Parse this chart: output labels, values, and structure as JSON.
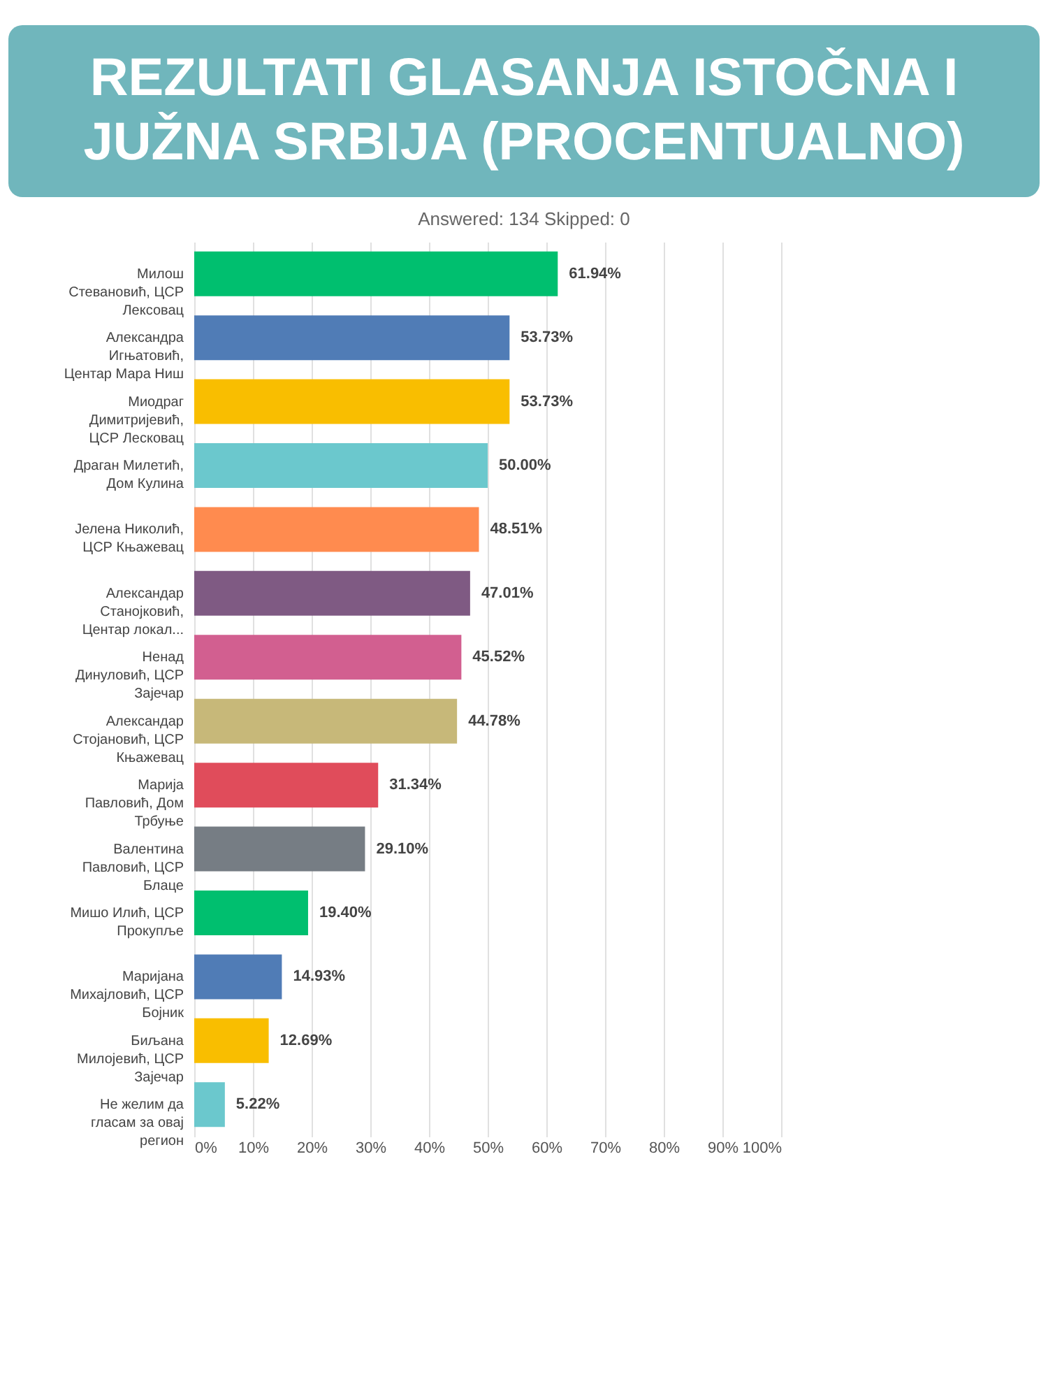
{
  "chart_data": {
    "type": "bar",
    "orientation": "horizontal",
    "title": "REZULTATI GLASANJA ISTOČNA I JUŽNA SRBIJA (PROCENTUALNO)",
    "subtitle": "Answered: 134     Skipped: 0",
    "categories": [
      "Милош Стевановић, ЦСР Лексовац",
      "Александра Игњатовић, Центар Мара Ниш",
      "Миодраг Димитријевић, ЦСР Лесковац",
      "Драган Милетић, Дом Кулина",
      "Јелена Николић, ЦСР Књажевац",
      "Александар Станојковић, Центар локал...",
      "Ненад Динуловић, ЦСР Зајечар",
      "Александар Стојановић, ЦСР Књажевац",
      "Марија Павловић, Дом Трбуње",
      "Валентина Павловић, ЦСР Блаце",
      "Мишо Илић, ЦСР Прокупље",
      "Маријана Михајловић, ЦСР Бојник",
      "Биљана Милојевић, ЦСР Зајечар",
      "Не желим да гласам за овај регион"
    ],
    "values": [
      61.94,
      53.73,
      53.73,
      50.0,
      48.51,
      47.01,
      45.52,
      44.78,
      31.34,
      29.1,
      19.4,
      14.93,
      12.69,
      5.22
    ],
    "value_labels": [
      "61.94%",
      "53.73%",
      "53.73%",
      "50.00%",
      "48.51%",
      "47.01%",
      "45.52%",
      "44.78%",
      "31.34%",
      "29.10%",
      "19.40%",
      "14.93%",
      "12.69%",
      "5.22%"
    ],
    "colors": [
      "#00bf6f",
      "#507cb6",
      "#f9be00",
      "#6bc8cd",
      "#ff8b4f",
      "#7f5a83",
      "#d25f90",
      "#c7b879",
      "#e04c5b",
      "#767d84",
      "#00bf6f",
      "#507cb6",
      "#f9be00",
      "#6bc8cd"
    ],
    "xlim": [
      0,
      100
    ],
    "xticks": [
      {
        "value": 0,
        "label": "0%"
      },
      {
        "value": 10,
        "label": "10%"
      },
      {
        "value": 20,
        "label": "20%"
      },
      {
        "value": 30,
        "label": "30%"
      },
      {
        "value": 40,
        "label": "40%"
      },
      {
        "value": 50,
        "label": "50%"
      },
      {
        "value": 60,
        "label": "60%"
      },
      {
        "value": 70,
        "label": "70%"
      },
      {
        "value": 80,
        "label": "80%"
      },
      {
        "value": 90,
        "label": "90%"
      },
      {
        "value": 100,
        "label": "100%"
      }
    ],
    "grid": "x",
    "legend": false
  }
}
